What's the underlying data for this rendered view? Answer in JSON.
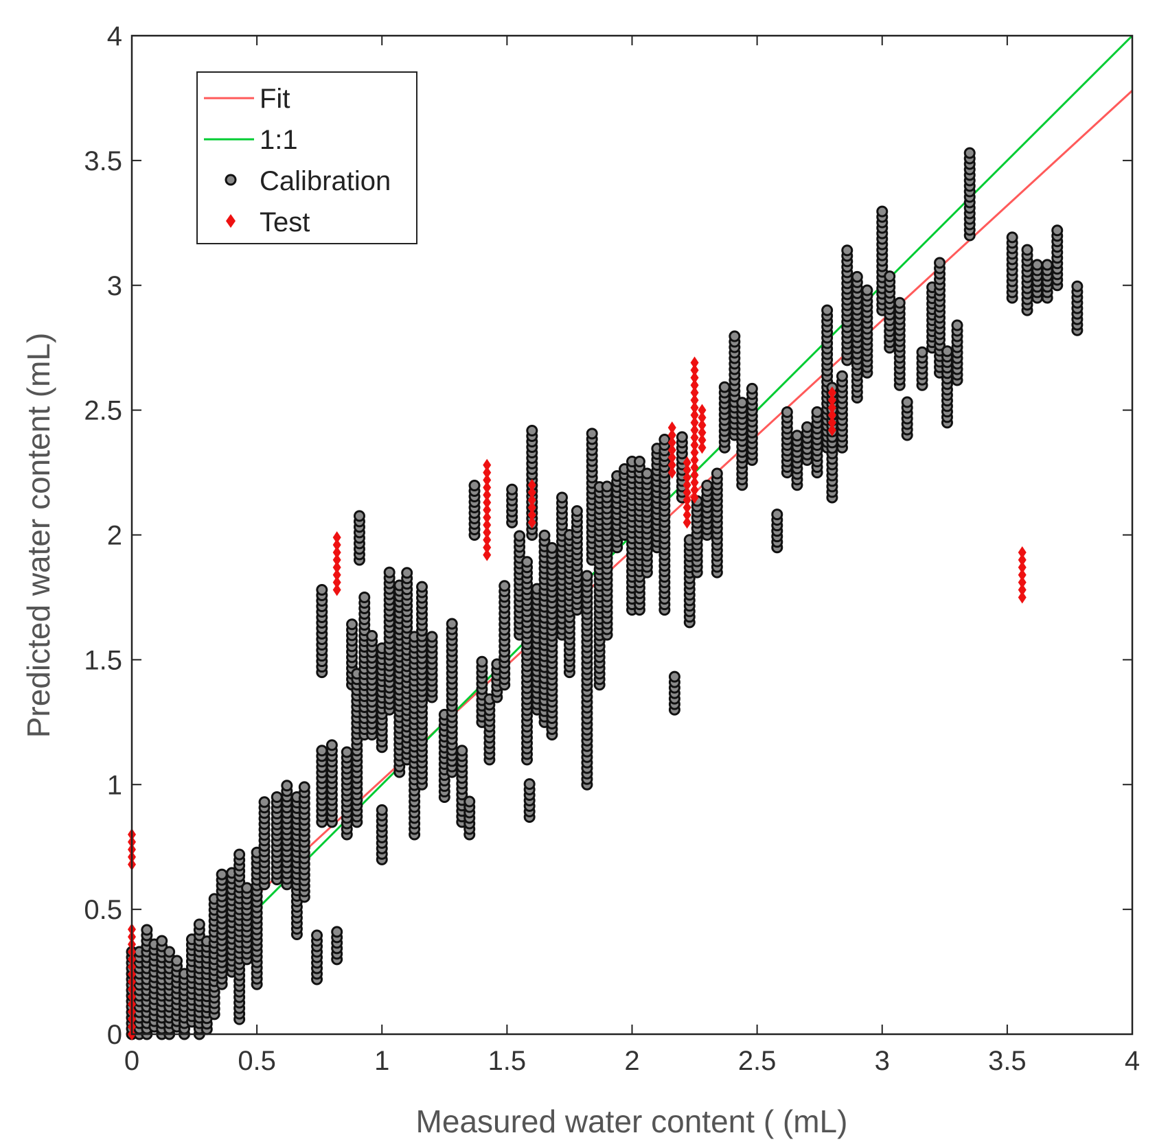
{
  "chart_data": {
    "type": "scatter",
    "title": "",
    "xlabel": "Measured water content ( (mL)",
    "ylabel": "Predicted water content (mL)",
    "xlim": [
      0,
      4
    ],
    "ylim": [
      0,
      4
    ],
    "xticks": [
      "0",
      "0.5",
      "1",
      "1.5",
      "2",
      "2.5",
      "3",
      "3.5",
      "4"
    ],
    "yticks": [
      "0",
      "0.5",
      "1",
      "1.5",
      "2",
      "2.5",
      "3",
      "3.5",
      "4"
    ],
    "legend_position": "top-left",
    "legend": [
      "Fit",
      "1:1",
      "Calibration",
      "Test"
    ],
    "colors": {
      "fit": "#ff5a5a",
      "one_to_one": "#00cc33",
      "calibration": "#111111",
      "test": "#ee1111"
    },
    "lines": [
      {
        "name": "Fit",
        "x": [
          0.35,
          4.0
        ],
        "y": [
          0.42,
          3.78
        ]
      },
      {
        "name": "1:1",
        "x": [
          0.35,
          4.0
        ],
        "y": [
          0.35,
          4.0
        ]
      }
    ],
    "calibration_clusters": [
      [
        0.0,
        0.0,
        0.35
      ],
      [
        0.03,
        0.0,
        0.35
      ],
      [
        0.06,
        0.0,
        0.43
      ],
      [
        0.09,
        0.03,
        0.38
      ],
      [
        0.12,
        0.0,
        0.38
      ],
      [
        0.15,
        0.0,
        0.33
      ],
      [
        0.18,
        0.03,
        0.3
      ],
      [
        0.21,
        0.0,
        0.25
      ],
      [
        0.24,
        0.05,
        0.38
      ],
      [
        0.27,
        0.0,
        0.44
      ],
      [
        0.3,
        0.02,
        0.38
      ],
      [
        0.33,
        0.08,
        0.55
      ],
      [
        0.36,
        0.2,
        0.64
      ],
      [
        0.4,
        0.25,
        0.65
      ],
      [
        0.43,
        0.06,
        0.73
      ],
      [
        0.46,
        0.3,
        0.6
      ],
      [
        0.5,
        0.2,
        0.73
      ],
      [
        0.53,
        0.6,
        0.95
      ],
      [
        0.58,
        0.62,
        0.95
      ],
      [
        0.62,
        0.6,
        1.0
      ],
      [
        0.66,
        0.4,
        0.95
      ],
      [
        0.69,
        0.55,
        1.0
      ],
      [
        0.74,
        0.22,
        0.4
      ],
      [
        0.76,
        0.85,
        1.15
      ],
      [
        0.76,
        1.45,
        1.78
      ],
      [
        0.8,
        0.85,
        1.17
      ],
      [
        0.82,
        0.3,
        0.42
      ],
      [
        0.86,
        0.8,
        1.15
      ],
      [
        0.88,
        1.4,
        1.65
      ],
      [
        0.9,
        0.85,
        1.45
      ],
      [
        0.91,
        1.9,
        2.08
      ],
      [
        0.93,
        1.2,
        1.75
      ],
      [
        0.96,
        1.2,
        1.6
      ],
      [
        1.0,
        0.7,
        0.9
      ],
      [
        1.0,
        1.15,
        1.55
      ],
      [
        1.03,
        1.3,
        1.85
      ],
      [
        1.07,
        1.05,
        1.8
      ],
      [
        1.1,
        1.1,
        1.85
      ],
      [
        1.13,
        0.8,
        1.6
      ],
      [
        1.16,
        1.0,
        1.8
      ],
      [
        1.2,
        1.35,
        1.6
      ],
      [
        1.25,
        0.95,
        1.3
      ],
      [
        1.28,
        1.05,
        1.65
      ],
      [
        1.32,
        0.85,
        1.15
      ],
      [
        1.35,
        0.8,
        0.95
      ],
      [
        1.37,
        2.0,
        2.2
      ],
      [
        1.4,
        1.25,
        1.5
      ],
      [
        1.43,
        1.1,
        1.35
      ],
      [
        1.46,
        1.35,
        1.5
      ],
      [
        1.49,
        1.4,
        1.8
      ],
      [
        1.52,
        2.05,
        2.2
      ],
      [
        1.55,
        1.6,
        2.0
      ],
      [
        1.58,
        1.1,
        1.9
      ],
      [
        1.59,
        0.87,
        1.02
      ],
      [
        1.6,
        2.0,
        2.42
      ],
      [
        1.62,
        1.3,
        1.8
      ],
      [
        1.65,
        1.25,
        2.0
      ],
      [
        1.68,
        1.2,
        1.95
      ],
      [
        1.72,
        1.6,
        2.15
      ],
      [
        1.75,
        1.45,
        2.0
      ],
      [
        1.78,
        1.7,
        2.1
      ],
      [
        1.82,
        1.0,
        1.85
      ],
      [
        1.84,
        1.9,
        2.42
      ],
      [
        1.87,
        1.4,
        2.2
      ],
      [
        1.9,
        1.6,
        2.2
      ],
      [
        1.94,
        1.95,
        2.25
      ],
      [
        1.97,
        2.0,
        2.28
      ],
      [
        2.0,
        1.7,
        2.3
      ],
      [
        2.03,
        1.7,
        2.3
      ],
      [
        2.06,
        1.85,
        2.25
      ],
      [
        2.1,
        1.95,
        2.35
      ],
      [
        2.13,
        1.7,
        2.4
      ],
      [
        2.17,
        1.3,
        1.45
      ],
      [
        2.2,
        2.15,
        2.4
      ],
      [
        2.23,
        1.65,
        2.0
      ],
      [
        2.26,
        1.85,
        2.15
      ],
      [
        2.3,
        2.0,
        2.2
      ],
      [
        2.34,
        1.85,
        2.25
      ],
      [
        2.37,
        2.35,
        2.6
      ],
      [
        2.41,
        2.4,
        2.8
      ],
      [
        2.44,
        2.2,
        2.55
      ],
      [
        2.48,
        2.3,
        2.6
      ],
      [
        2.58,
        1.95,
        2.1
      ],
      [
        2.62,
        2.25,
        2.5
      ],
      [
        2.66,
        2.2,
        2.4
      ],
      [
        2.7,
        2.3,
        2.45
      ],
      [
        2.74,
        2.25,
        2.5
      ],
      [
        2.78,
        2.35,
        2.9
      ],
      [
        2.8,
        2.15,
        2.6
      ],
      [
        2.84,
        2.35,
        2.65
      ],
      [
        2.86,
        2.7,
        3.15
      ],
      [
        2.9,
        2.55,
        3.05
      ],
      [
        2.94,
        2.65,
        3.0
      ],
      [
        3.0,
        2.9,
        3.3
      ],
      [
        3.03,
        2.75,
        3.05
      ],
      [
        3.07,
        2.6,
        2.95
      ],
      [
        3.1,
        2.4,
        2.55
      ],
      [
        3.16,
        2.6,
        2.75
      ],
      [
        3.2,
        2.75,
        3.0
      ],
      [
        3.23,
        2.65,
        3.1
      ],
      [
        3.26,
        2.45,
        2.75
      ],
      [
        3.3,
        2.62,
        2.85
      ],
      [
        3.35,
        3.2,
        3.55
      ],
      [
        3.52,
        2.95,
        3.2
      ],
      [
        3.58,
        2.9,
        3.15
      ],
      [
        3.62,
        2.95,
        3.1
      ],
      [
        3.66,
        2.95,
        3.1
      ],
      [
        3.7,
        3.0,
        3.22
      ],
      [
        3.78,
        2.82,
        3.0
      ]
    ],
    "test_clusters": [
      [
        0.0,
        0.0,
        0.42
      ],
      [
        0.0,
        0.68,
        0.82
      ],
      [
        0.82,
        1.78,
        2.0
      ],
      [
        1.42,
        1.92,
        2.28
      ],
      [
        1.6,
        2.05,
        2.22
      ],
      [
        2.16,
        2.25,
        2.45
      ],
      [
        2.22,
        2.05,
        2.3
      ],
      [
        2.25,
        2.15,
        2.7
      ],
      [
        2.28,
        2.35,
        2.5
      ],
      [
        2.8,
        2.42,
        2.58
      ],
      [
        3.56,
        1.75,
        1.95
      ]
    ]
  }
}
